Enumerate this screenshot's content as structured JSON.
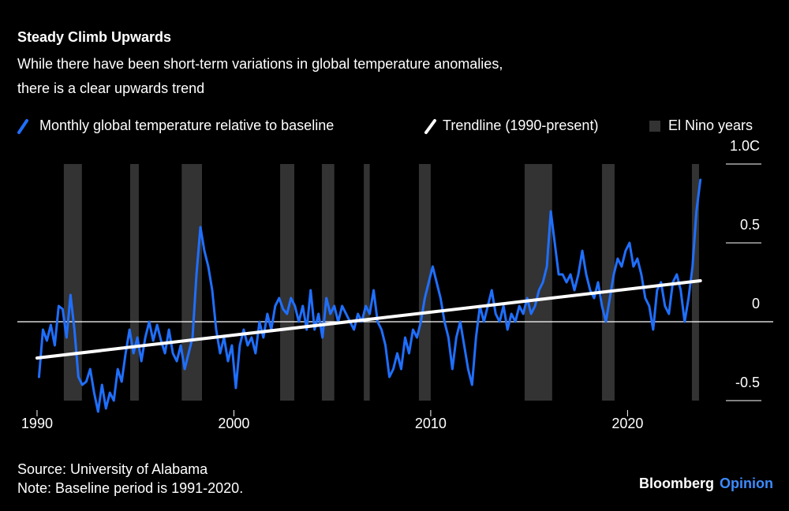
{
  "chart_data": {
    "type": "line",
    "title": "Steady Climb Upwards",
    "subtitle": [
      "While there have been short-term variations in global temperature anomalies,",
      "there is a clear upwards trend"
    ],
    "xlim": [
      1989,
      2027.4
    ],
    "xticks": [
      1990,
      2000,
      2010,
      2020
    ],
    "ylim": [
      -0.6,
      1.0
    ],
    "yticks": [
      {
        "value": 1.0,
        "label": "1.0C"
      },
      0.5,
      0,
      -0.5
    ],
    "spans": {
      "name": "El Nino years",
      "color": "#333333",
      "ranges": [
        [
          1991.36,
          1992.28
        ],
        [
          1994.73,
          1995.17
        ],
        [
          1997.35,
          1998.38
        ],
        [
          2002.35,
          2003.07
        ],
        [
          2004.47,
          2005.1
        ],
        [
          2006.6,
          2006.9
        ],
        [
          2009.4,
          2010.0
        ],
        [
          2014.77,
          2016.17
        ],
        [
          2018.7,
          2019.34
        ],
        [
          2023.27,
          2023.63
        ]
      ]
    },
    "series": [
      {
        "name": "Monthly global temperature relative to baseline",
        "color": "#1f6fff",
        "x": [
          1990.1,
          1990.3,
          1990.5,
          1990.7,
          1990.9,
          1991.1,
          1991.3,
          1991.5,
          1991.7,
          1991.9,
          1992.1,
          1992.3,
          1992.5,
          1992.7,
          1992.9,
          1993.1,
          1993.3,
          1993.5,
          1993.7,
          1993.9,
          1994.1,
          1994.3,
          1994.5,
          1994.7,
          1994.9,
          1995.1,
          1995.3,
          1995.5,
          1995.7,
          1995.9,
          1996.1,
          1996.3,
          1996.5,
          1996.7,
          1996.9,
          1997.1,
          1997.3,
          1997.5,
          1997.7,
          1997.9,
          1998.1,
          1998.3,
          1998.5,
          1998.7,
          1998.9,
          1999.1,
          1999.3,
          1999.5,
          1999.7,
          1999.9,
          2000.1,
          2000.3,
          2000.5,
          2000.7,
          2000.9,
          2001.1,
          2001.3,
          2001.5,
          2001.7,
          2001.9,
          2002.1,
          2002.3,
          2002.5,
          2002.7,
          2002.9,
          2003.1,
          2003.3,
          2003.5,
          2003.7,
          2003.9,
          2004.1,
          2004.3,
          2004.5,
          2004.7,
          2004.9,
          2005.1,
          2005.3,
          2005.5,
          2005.7,
          2005.9,
          2006.1,
          2006.3,
          2006.5,
          2006.7,
          2006.9,
          2007.1,
          2007.3,
          2007.5,
          2007.7,
          2007.9,
          2008.1,
          2008.3,
          2008.5,
          2008.7,
          2008.9,
          2009.1,
          2009.3,
          2009.5,
          2009.7,
          2009.9,
          2010.1,
          2010.3,
          2010.5,
          2010.7,
          2010.9,
          2011.1,
          2011.3,
          2011.5,
          2011.7,
          2011.9,
          2012.1,
          2012.3,
          2012.5,
          2012.7,
          2012.9,
          2013.1,
          2013.3,
          2013.5,
          2013.7,
          2013.9,
          2014.1,
          2014.3,
          2014.5,
          2014.7,
          2014.9,
          2015.1,
          2015.3,
          2015.5,
          2015.7,
          2015.9,
          2016.1,
          2016.3,
          2016.5,
          2016.7,
          2016.9,
          2017.1,
          2017.3,
          2017.5,
          2017.7,
          2017.9,
          2018.1,
          2018.3,
          2018.5,
          2018.7,
          2018.9,
          2019.1,
          2019.3,
          2019.5,
          2019.7,
          2019.9,
          2020.1,
          2020.3,
          2020.5,
          2020.7,
          2020.9,
          2021.1,
          2021.3,
          2021.5,
          2021.7,
          2021.9,
          2022.1,
          2022.3,
          2022.5,
          2022.7,
          2022.9,
          2023.1,
          2023.3,
          2023.5,
          2023.7
        ],
        "values": [
          -0.35,
          -0.05,
          -0.12,
          -0.02,
          -0.15,
          0.1,
          0.08,
          -0.1,
          0.17,
          -0.05,
          -0.35,
          -0.4,
          -0.38,
          -0.3,
          -0.45,
          -0.57,
          -0.4,
          -0.55,
          -0.45,
          -0.5,
          -0.3,
          -0.38,
          -0.2,
          -0.05,
          -0.2,
          -0.1,
          -0.25,
          -0.1,
          0.0,
          -0.12,
          -0.02,
          -0.12,
          -0.2,
          -0.05,
          -0.2,
          -0.25,
          -0.15,
          -0.3,
          -0.2,
          -0.1,
          0.3,
          0.6,
          0.45,
          0.35,
          0.2,
          -0.05,
          -0.2,
          -0.1,
          -0.25,
          -0.15,
          -0.42,
          -0.15,
          -0.05,
          -0.15,
          -0.1,
          -0.2,
          0.0,
          -0.1,
          0.05,
          -0.05,
          0.1,
          0.15,
          0.08,
          0.05,
          0.15,
          0.1,
          0.0,
          0.1,
          -0.05,
          0.2,
          -0.05,
          0.05,
          -0.1,
          0.15,
          0.05,
          0.1,
          0.0,
          0.1,
          0.05,
          0.0,
          -0.05,
          0.05,
          0.0,
          0.1,
          0.05,
          0.2,
          0.0,
          -0.05,
          -0.15,
          -0.35,
          -0.3,
          -0.2,
          -0.3,
          -0.1,
          -0.2,
          -0.05,
          -0.1,
          0.0,
          0.15,
          0.25,
          0.35,
          0.25,
          0.15,
          0.0,
          -0.1,
          -0.3,
          -0.1,
          0.0,
          -0.15,
          -0.3,
          -0.4,
          -0.1,
          0.1,
          0.0,
          0.1,
          0.2,
          0.05,
          0.0,
          0.1,
          -0.05,
          0.05,
          0.0,
          0.1,
          0.05,
          0.15,
          0.05,
          0.1,
          0.2,
          0.25,
          0.35,
          0.7,
          0.5,
          0.3,
          0.3,
          0.25,
          0.3,
          0.2,
          0.3,
          0.45,
          0.3,
          0.2,
          0.15,
          0.25,
          0.1,
          0.0,
          0.15,
          0.3,
          0.4,
          0.35,
          0.45,
          0.5,
          0.35,
          0.4,
          0.3,
          0.15,
          0.1,
          -0.05,
          0.2,
          0.25,
          0.1,
          0.05,
          0.25,
          0.3,
          0.2,
          0.0,
          0.15,
          0.35,
          0.7,
          0.9
        ]
      },
      {
        "name": "Trendline (1990-present)",
        "color": "#ffffff",
        "x": [
          1990,
          2023.7
        ],
        "values": [
          -0.23,
          0.26
        ]
      }
    ],
    "source": "Source: University of Alabama",
    "note": "Note: Baseline period is 1991-2020.",
    "brand": [
      "Bloomberg",
      "Opinion"
    ]
  }
}
